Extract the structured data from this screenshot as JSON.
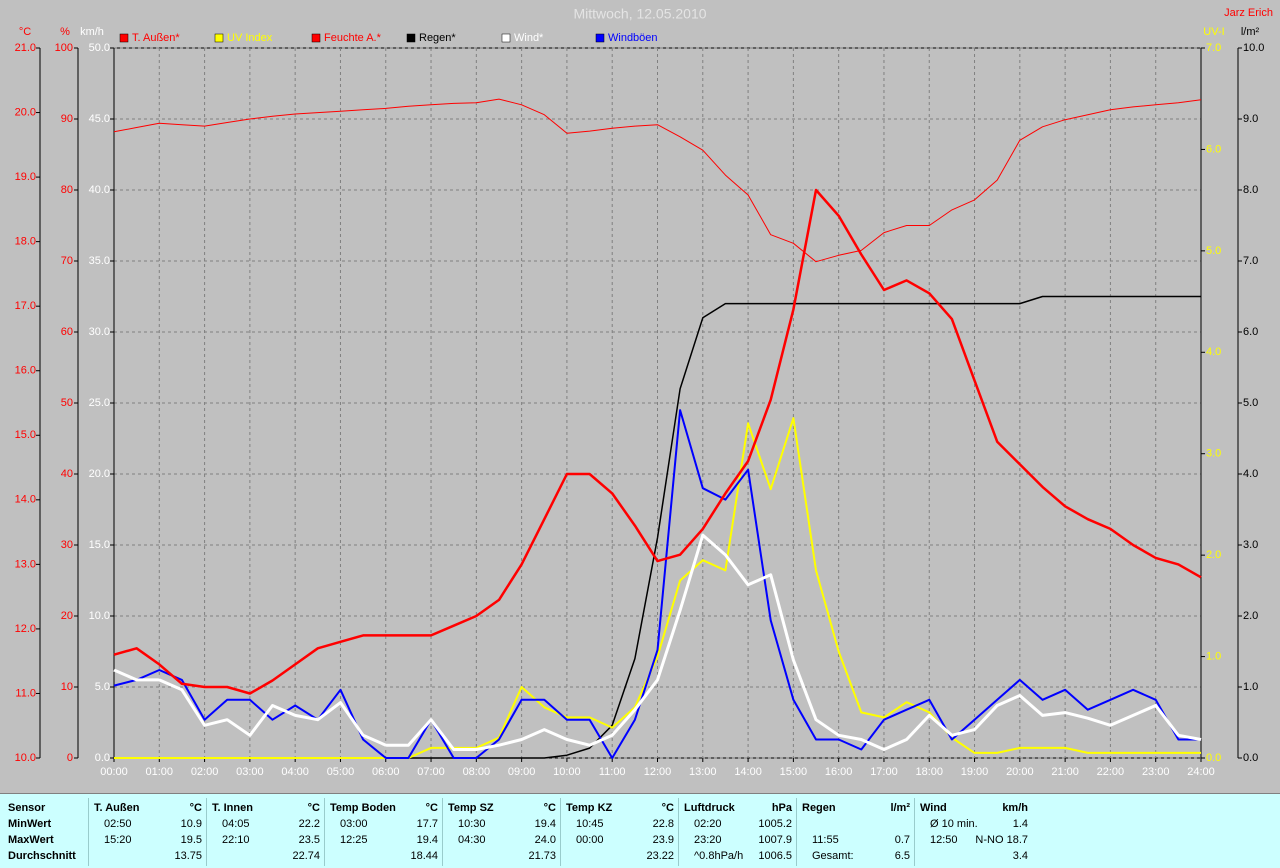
{
  "chart_data": {
    "type": "line",
    "title": "Mittwoch, 12.05.2010",
    "author": "Jarz Erich",
    "grid": true,
    "x": [
      0,
      0.5,
      1,
      1.5,
      2,
      2.5,
      3,
      3.5,
      4,
      4.5,
      5,
      5.5,
      6,
      6.5,
      7,
      7.5,
      8,
      8.5,
      9,
      9.5,
      10,
      10.5,
      11,
      11.5,
      12,
      12.5,
      13,
      13.5,
      14,
      14.5,
      15,
      15.5,
      16,
      16.5,
      17,
      17.5,
      18,
      18.5,
      19,
      19.5,
      20,
      20.5,
      21,
      21.5,
      22,
      22.5,
      23,
      23.5,
      24
    ],
    "xlim": [
      0,
      24
    ],
    "xticks": [
      {
        "value": 0,
        "label": "00:00"
      },
      {
        "value": 1,
        "label": "01:00"
      },
      {
        "value": 2,
        "label": "02:00"
      },
      {
        "value": 3,
        "label": "03:00"
      },
      {
        "value": 4,
        "label": "04:00"
      },
      {
        "value": 5,
        "label": "05:00"
      },
      {
        "value": 6,
        "label": "06:00"
      },
      {
        "value": 7,
        "label": "07:00"
      },
      {
        "value": 8,
        "label": "08:00"
      },
      {
        "value": 9,
        "label": "09:00"
      },
      {
        "value": 10,
        "label": "10:00"
      },
      {
        "value": 11,
        "label": "11:00"
      },
      {
        "value": 12,
        "label": "12:00"
      },
      {
        "value": 13,
        "label": "13:00"
      },
      {
        "value": 14,
        "label": "14:00"
      },
      {
        "value": 15,
        "label": "15:00"
      },
      {
        "value": 16,
        "label": "16:00"
      },
      {
        "value": 17,
        "label": "17:00"
      },
      {
        "value": 18,
        "label": "18:00"
      },
      {
        "value": 19,
        "label": "19:00"
      },
      {
        "value": 20,
        "label": "20:00"
      },
      {
        "value": 21,
        "label": "21:00"
      },
      {
        "value": 22,
        "label": "22:00"
      },
      {
        "value": 23,
        "label": "23:00"
      },
      {
        "value": 24,
        "label": "24:00"
      }
    ],
    "ylabel": "°C",
    "ycolor": "#ff0000",
    "ylim": [
      10,
      21
    ],
    "yticks": [
      {
        "value": 10,
        "label": "10.0"
      },
      {
        "value": 11,
        "label": "11.0"
      },
      {
        "value": 12,
        "label": "12.0"
      },
      {
        "value": 13,
        "label": "13.0"
      },
      {
        "value": 14,
        "label": "14.0"
      },
      {
        "value": 15,
        "label": "15.0"
      },
      {
        "value": 16,
        "label": "16.0"
      },
      {
        "value": 17,
        "label": "17.0"
      },
      {
        "value": 18,
        "label": "18.0"
      },
      {
        "value": 19,
        "label": "19.0"
      },
      {
        "value": 20,
        "label": "20.0"
      },
      {
        "value": 21,
        "label": "21.0"
      }
    ],
    "y2label": "%",
    "y2color": "#ff0000",
    "y2lim": [
      0,
      100
    ],
    "y2ticks": [
      0,
      10,
      20,
      30,
      40,
      50,
      60,
      70,
      80,
      90,
      100
    ],
    "y3label": "km/h",
    "y3color": "#ffffff",
    "y3lim": [
      0,
      50
    ],
    "y3ticks": [
      {
        "value": 0,
        "label": "0.0"
      },
      {
        "value": 5,
        "label": "5.0"
      },
      {
        "value": 10,
        "label": "10.0"
      },
      {
        "value": 15,
        "label": "15.0"
      },
      {
        "value": 20,
        "label": "20.0"
      },
      {
        "value": 25,
        "label": "25.0"
      },
      {
        "value": 30,
        "label": "30.0"
      },
      {
        "value": 35,
        "label": "35.0"
      },
      {
        "value": 40,
        "label": "40.0"
      },
      {
        "value": 45,
        "label": "45.0"
      },
      {
        "value": 50,
        "label": "50.0"
      }
    ],
    "y4label": "UV-I",
    "y4color": "#ffff00",
    "y4lim": [
      0,
      7
    ],
    "y4ticks": [
      {
        "value": 0,
        "label": "0.0"
      },
      {
        "value": 1,
        "label": "1.0"
      },
      {
        "value": 2,
        "label": "2.0"
      },
      {
        "value": 3,
        "label": "3.0"
      },
      {
        "value": 4,
        "label": "4.0"
      },
      {
        "value": 5,
        "label": "5.0"
      },
      {
        "value": 6,
        "label": "6.0"
      },
      {
        "value": 7,
        "label": "7.0"
      }
    ],
    "y5label": "l/m²",
    "y5color": "#000000",
    "y5lim": [
      0,
      10
    ],
    "y5ticks": [
      {
        "value": 0,
        "label": "0.0"
      },
      {
        "value": 1,
        "label": "1.0"
      },
      {
        "value": 2,
        "label": "2.0"
      },
      {
        "value": 3,
        "label": "3.0"
      },
      {
        "value": 4,
        "label": "4.0"
      },
      {
        "value": 5,
        "label": "5.0"
      },
      {
        "value": 6,
        "label": "6.0"
      },
      {
        "value": 7,
        "label": "7.0"
      },
      {
        "value": 8,
        "label": "8.0"
      },
      {
        "value": 9,
        "label": "9.0"
      },
      {
        "value": 10,
        "label": "10.0"
      }
    ],
    "series": [
      {
        "name": "T. Außen*",
        "color": "#ff0000",
        "axis": "y",
        "values": [
          11.6,
          11.7,
          11.45,
          11.15,
          11.1,
          11.1,
          11.0,
          11.2,
          11.45,
          11.7,
          11.8,
          11.9,
          11.9,
          11.9,
          11.9,
          12.05,
          12.2,
          12.45,
          13.0,
          13.7,
          14.4,
          14.4,
          14.1,
          13.6,
          13.05,
          13.15,
          13.55,
          14.1,
          14.6,
          15.55,
          16.95,
          18.8,
          18.4,
          17.8,
          17.25,
          17.4,
          17.2,
          16.8,
          15.85,
          14.9,
          14.55,
          14.2,
          13.9,
          13.7,
          13.55,
          13.3,
          13.1,
          13.0,
          12.8
        ]
      },
      {
        "name": "UV Index",
        "color": "#ffff00",
        "axis": "y4",
        "values": [
          0,
          0,
          0,
          0,
          0,
          0,
          0,
          0,
          0,
          0,
          0,
          0,
          0,
          0,
          0.1,
          0.1,
          0.1,
          0.2,
          0.7,
          0.5,
          0.4,
          0.4,
          0.3,
          0.5,
          1.0,
          1.75,
          1.95,
          1.85,
          3.3,
          2.65,
          3.35,
          1.85,
          1.05,
          0.45,
          0.4,
          0.55,
          0.45,
          0.2,
          0.05,
          0.05,
          0.1,
          0.1,
          0.1,
          0.05,
          0.05,
          0.05,
          0.05,
          0.05,
          0.05
        ]
      },
      {
        "name": "Feuchte A.*",
        "color": "#ff0000",
        "axis": "y2",
        "values": [
          88.2,
          88.8,
          89.4,
          89.2,
          89.0,
          89.5,
          90.0,
          90.4,
          90.7,
          90.9,
          91.1,
          91.3,
          91.5,
          91.8,
          92.0,
          92.2,
          92.3,
          92.8,
          92.0,
          90.6,
          88.0,
          88.3,
          88.7,
          89.0,
          89.2,
          87.5,
          85.6,
          82.1,
          79.3,
          73.7,
          72.5,
          69.9,
          70.8,
          71.5,
          74.0,
          75.0,
          75.0,
          77.2,
          78.6,
          81.4,
          87.0,
          88.9,
          89.9,
          90.6,
          91.3,
          91.7,
          92.0,
          92.3,
          92.7
        ]
      },
      {
        "name": "Regen*",
        "color": "#000000",
        "axis": "y5",
        "values": [
          0,
          0,
          0,
          0,
          0,
          0,
          0,
          0,
          0,
          0,
          0,
          0,
          0,
          0,
          0,
          0,
          0,
          0,
          0,
          0,
          0.04,
          0.14,
          0.46,
          1.4,
          3.1,
          5.2,
          6.2,
          6.4,
          6.4,
          6.4,
          6.4,
          6.4,
          6.4,
          6.4,
          6.4,
          6.4,
          6.4,
          6.4,
          6.4,
          6.4,
          6.4,
          6.5,
          6.5,
          6.5,
          6.5,
          6.5,
          6.5,
          6.5,
          6.5
        ]
      },
      {
        "name": "Wind*",
        "color": "#ffffff",
        "axis": "y3",
        "values": [
          6.2,
          5.5,
          5.5,
          4.8,
          2.3,
          2.7,
          1.6,
          3.7,
          3.0,
          2.7,
          3.9,
          1.6,
          0.9,
          0.9,
          2.7,
          0.6,
          0.6,
          0.9,
          1.3,
          2.0,
          1.3,
          0.9,
          1.6,
          3.4,
          5.5,
          10.4,
          15.7,
          14.3,
          12.2,
          12.9,
          6.9,
          2.7,
          1.6,
          1.3,
          0.6,
          1.3,
          3.0,
          1.6,
          2.0,
          3.7,
          4.4,
          3.0,
          3.2,
          2.8,
          2.3,
          3.0,
          3.7,
          1.6,
          1.3
        ]
      },
      {
        "name": "Windböen",
        "color": "#0000ff",
        "axis": "y3",
        "values": [
          5.1,
          5.5,
          6.2,
          5.5,
          2.7,
          4.1,
          4.1,
          2.7,
          3.7,
          2.7,
          4.8,
          1.3,
          0,
          0,
          2.7,
          0,
          0,
          1.3,
          4.1,
          4.1,
          2.7,
          2.7,
          0,
          2.7,
          7.6,
          24.5,
          19.0,
          18.2,
          20.3,
          9.7,
          4.1,
          1.3,
          1.3,
          0.6,
          2.7,
          3.4,
          4.1,
          1.3,
          2.7,
          4.1,
          5.5,
          4.1,
          4.8,
          3.4,
          4.1,
          4.8,
          4.1,
          1.3,
          1.3
        ]
      }
    ]
  },
  "table": {
    "header_label": "Sensor",
    "groups": [
      {
        "name": "T. Außen",
        "unit": "°C"
      },
      {
        "name": "T. Innen",
        "unit": "°C"
      },
      {
        "name": "Temp Boden",
        "unit": "°C"
      },
      {
        "name": "Temp SZ",
        "unit": "°C"
      },
      {
        "name": "Temp KZ",
        "unit": "°C"
      },
      {
        "name": "Luftdruck",
        "unit": "hPa"
      },
      {
        "name": "Regen",
        "unit": "l/m²"
      },
      {
        "name": "Wind",
        "unit": "km/h"
      }
    ],
    "rows": [
      {
        "label": "MinWert",
        "cells": [
          [
            "02:50",
            "10.9"
          ],
          [
            "04:05",
            "22.2"
          ],
          [
            "03:00",
            "17.7"
          ],
          [
            "10:30",
            "19.4"
          ],
          [
            "10:45",
            "22.8"
          ],
          [
            "02:20",
            "1005.2"
          ],
          [
            null,
            null
          ],
          [
            "Ø 10 min.",
            "1.4"
          ]
        ]
      },
      {
        "label": "MaxWert",
        "cells": [
          [
            "15:20",
            "19.5"
          ],
          [
            "22:10",
            "23.5"
          ],
          [
            "12:25",
            "19.4"
          ],
          [
            "04:30",
            "24.0"
          ],
          [
            "00:00",
            "23.9"
          ],
          [
            "23:20",
            "1007.9"
          ],
          [
            "11:55",
            "0.7"
          ],
          [
            "12:50",
            "N-NO 18.7"
          ]
        ]
      },
      {
        "label": "Durchschnitt",
        "cells": [
          [
            null,
            "13.75"
          ],
          [
            null,
            "22.74"
          ],
          [
            null,
            "18.44"
          ],
          [
            null,
            "21.73"
          ],
          [
            null,
            "23.22"
          ],
          [
            "^0.8hPa/h",
            "1006.5"
          ],
          [
            "Gesamt:",
            "6.5"
          ],
          [
            null,
            "3.4"
          ]
        ]
      }
    ]
  }
}
